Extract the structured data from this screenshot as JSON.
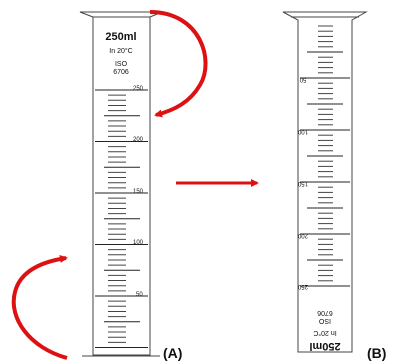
{
  "cylinder_a": {
    "volume": "250ml",
    "temperature": "In 20°C",
    "standard_line1": "ISO",
    "standard_line2": "6706",
    "scale_labels": [
      "250",
      "200",
      "150",
      "100",
      "50"
    ]
  },
  "cylinder_b": {
    "volume": "250ml",
    "temperature": "In 20°C",
    "standard_line1": "ISO",
    "standard_line2": "6706",
    "scale_labels": [
      "50",
      "100",
      "150",
      "200",
      "250"
    ]
  },
  "captions": {
    "a": "(A)",
    "b": "(B)"
  },
  "colors": {
    "arrow": "#dd1111",
    "outline": "#444444"
  }
}
